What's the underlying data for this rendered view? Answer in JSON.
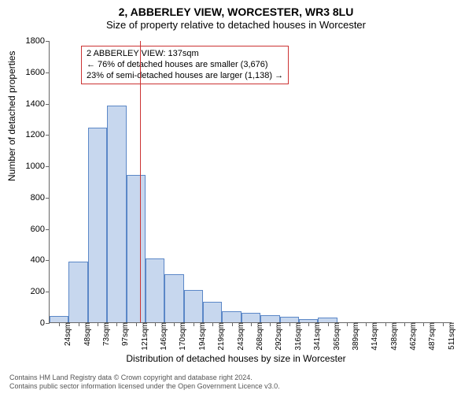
{
  "title_main": "2, ABBERLEY VIEW, WORCESTER, WR3 8LU",
  "title_sub": "Size of property relative to detached houses in Worcester",
  "y_axis_label": "Number of detached properties",
  "x_axis_label": "Distribution of detached houses by size in Worcester",
  "chart": {
    "type": "histogram",
    "background_color": "#ffffff",
    "axis_color": "#666666",
    "bar_fill": "#c7d7ee",
    "bar_stroke": "#5b87c7",
    "vline_color": "#cc3333",
    "annot_border": "#cc3333",
    "ylim": [
      0,
      1800
    ],
    "ytick_step": 200,
    "yticks": [
      0,
      200,
      400,
      600,
      800,
      1000,
      1200,
      1400,
      1600,
      1800
    ],
    "xticks": [
      "24sqm",
      "48sqm",
      "73sqm",
      "97sqm",
      "121sqm",
      "146sqm",
      "170sqm",
      "194sqm",
      "219sqm",
      "243sqm",
      "268sqm",
      "292sqm",
      "316sqm",
      "341sqm",
      "365sqm",
      "389sqm",
      "414sqm",
      "438sqm",
      "462sqm",
      "487sqm",
      "511sqm"
    ],
    "values": [
      40,
      385,
      1240,
      1385,
      940,
      405,
      305,
      205,
      130,
      70,
      60,
      45,
      35,
      20,
      30,
      0,
      0,
      0,
      0,
      0,
      0
    ],
    "marker_value_sqm": 137,
    "marker_bin_index": 4.7
  },
  "annotation": {
    "line1": "2 ABBERLEY VIEW: 137sqm",
    "line2": "← 76% of detached houses are smaller (3,676)",
    "line3": "23% of semi-detached houses are larger (1,138) →"
  },
  "footer_line1": "Contains HM Land Registry data © Crown copyright and database right 2024.",
  "footer_line2": "Contains public sector information licensed under the Open Government Licence v3.0."
}
